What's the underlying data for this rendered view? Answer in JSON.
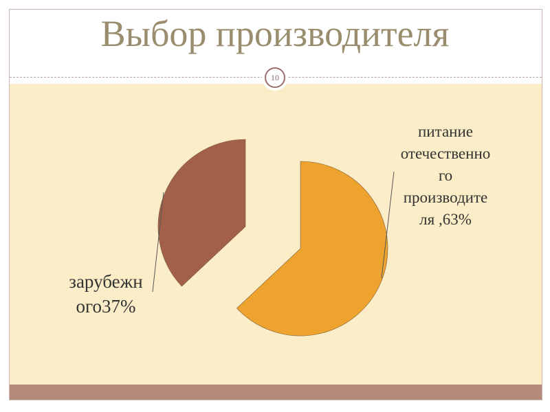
{
  "slide": {
    "title": "Выбор производителя",
    "page_number": "10"
  },
  "colors": {
    "domestic": "#eea32f",
    "foreign": "#a2604a",
    "background": "#fcedc9",
    "stripe": "#b58a7d",
    "title": "#9a8d6e"
  },
  "chart_data": {
    "type": "pie",
    "exploded": true,
    "slices": [
      {
        "label": "питание отечественного производителя ,63%",
        "label_lines": [
          "питание",
          "отечественно",
          "го",
          "производите",
          "ля ,63%"
        ],
        "value": 63,
        "color": "#eea32f"
      },
      {
        "label": "зарубежного37%",
        "label_lines": [
          "зарубежн",
          "ого37%"
        ],
        "value": 37,
        "color": "#a2604a"
      }
    ]
  }
}
